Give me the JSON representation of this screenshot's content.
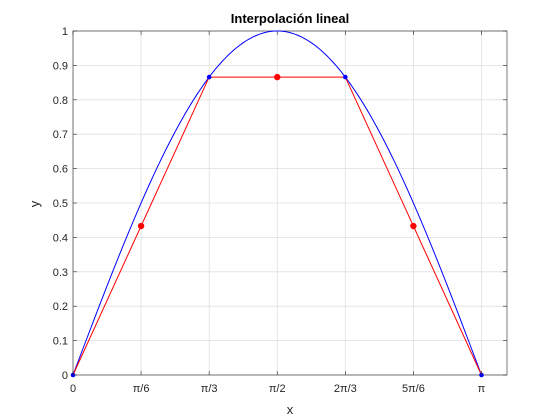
{
  "chart_data": {
    "type": "line",
    "title": "Interpolación lineal",
    "xlabel": "x",
    "ylabel": "y",
    "xlim": [
      0,
      3.3379
    ],
    "ylim": [
      0,
      1
    ],
    "grid": true,
    "x_ticks": [
      {
        "value": 0,
        "label": "0"
      },
      {
        "value": 0.5236,
        "label": "π/6"
      },
      {
        "value": 1.0472,
        "label": "π/3"
      },
      {
        "value": 1.5708,
        "label": "π/2"
      },
      {
        "value": 2.0944,
        "label": "2π/3"
      },
      {
        "value": 2.618,
        "label": "5π/6"
      },
      {
        "value": 3.1416,
        "label": "π"
      }
    ],
    "y_ticks": [
      {
        "value": 0,
        "label": "0"
      },
      {
        "value": 0.1,
        "label": "0.1"
      },
      {
        "value": 0.2,
        "label": "0.2"
      },
      {
        "value": 0.3,
        "label": "0.3"
      },
      {
        "value": 0.4,
        "label": "0.4"
      },
      {
        "value": 0.5,
        "label": "0.5"
      },
      {
        "value": 0.6,
        "label": "0.6"
      },
      {
        "value": 0.7,
        "label": "0.7"
      },
      {
        "value": 0.8,
        "label": "0.8"
      },
      {
        "value": 0.9,
        "label": "0.9"
      },
      {
        "value": 1,
        "label": "1"
      }
    ],
    "series": [
      {
        "kind": "curve",
        "function": "sin",
        "domain": [
          0,
          3.1416
        ],
        "color": "#0000ff"
      },
      {
        "kind": "polyline",
        "x": [
          0,
          1.0472,
          2.0944,
          3.1416
        ],
        "y": [
          0,
          0.866,
          0.866,
          0
        ],
        "color": "#ff0000"
      },
      {
        "kind": "points",
        "x": [
          0,
          1.0472,
          2.0944,
          3.1416
        ],
        "y": [
          0,
          0.866,
          0.866,
          0
        ],
        "color": "#0000ff"
      },
      {
        "kind": "points",
        "x": [
          0.5236,
          1.5708,
          2.618
        ],
        "y": [
          0.433,
          0.866,
          0.433
        ],
        "color": "#ff0000"
      }
    ]
  }
}
